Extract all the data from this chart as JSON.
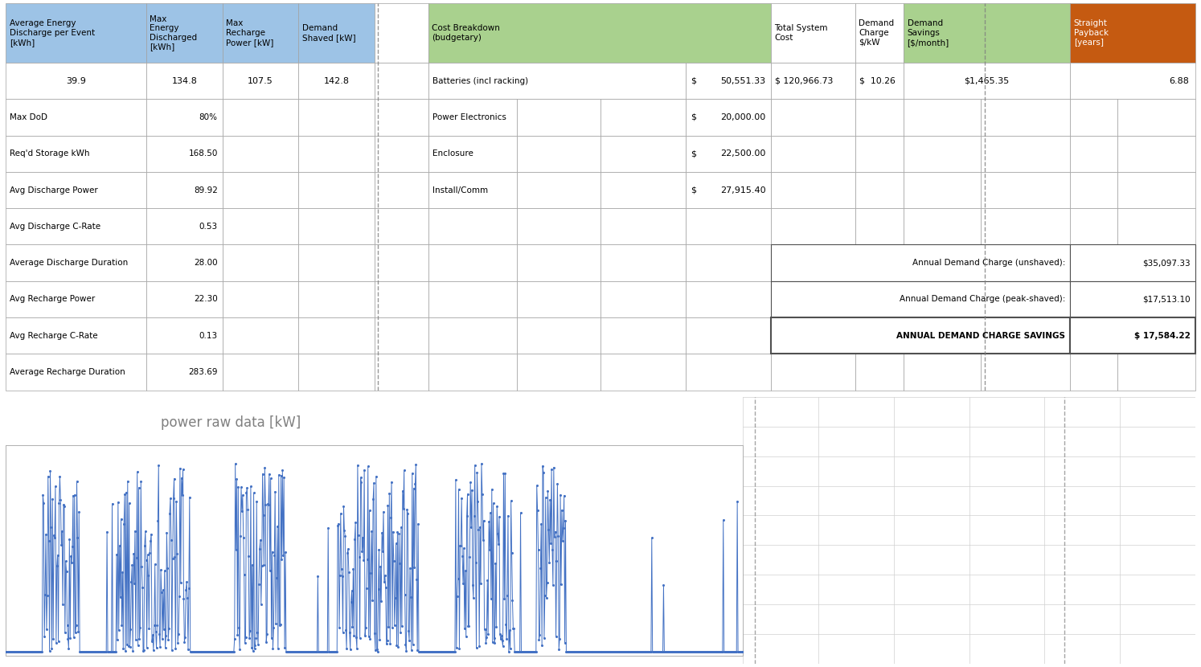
{
  "header_bg_color": "#9DC3E6",
  "green_bg_color": "#A9D18E",
  "orange_bg_color": "#C55A11",
  "white_bg": "#FFFFFF",
  "dashed_line_color": "#7F7F7F",
  "blue_plot_color": "#4472C4",
  "col1_val": "39.9",
  "col2_val": "134.8",
  "col3_val": "107.5",
  "col4_val": "142.8",
  "left_table": [
    [
      "Max DoD",
      "80%"
    ],
    [
      "Req'd Storage kWh",
      "168.50"
    ],
    [
      "Avg Discharge Power",
      "89.92"
    ],
    [
      "Avg Discharge C-Rate",
      "0.53"
    ],
    [
      "Average Discharge Duration",
      "28.00"
    ],
    [
      "Avg Recharge Power",
      "22.30"
    ],
    [
      "Avg Recharge C-Rate",
      "0.13"
    ],
    [
      "Average Recharge Duration",
      "283.69"
    ]
  ],
  "cost_table": [
    [
      "Batteries (incl racking)",
      "$",
      "50,551.33"
    ],
    [
      "Power Electronics",
      "$",
      "20,000.00"
    ],
    [
      "Enclosure",
      "$",
      "22,500.00"
    ],
    [
      "Install/Comm",
      "$",
      "27,915.40"
    ]
  ],
  "total_system_cost": "$ 120,966.73",
  "demand_charge_per_kw": "$  10.26",
  "demand_savings_month": "$1,465.35",
  "straight_payback": "6.88",
  "annual_unshaved": "$35,097.33",
  "annual_peakshaved": "$17,513.10",
  "annual_savings": "$ 17,584.22",
  "chart_title": "power raw data [kW]",
  "chart_title_color": "#808080"
}
